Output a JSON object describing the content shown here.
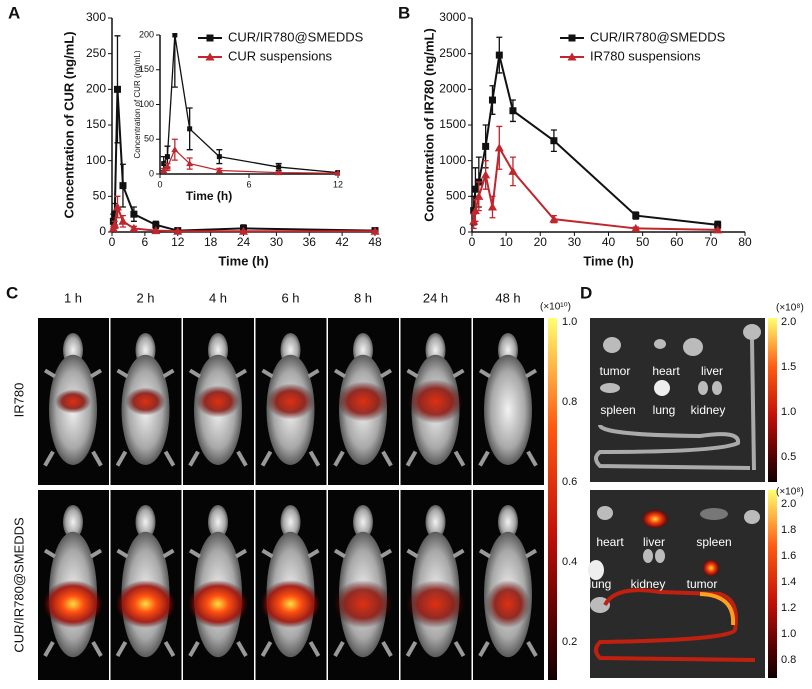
{
  "chart_data": [
    {
      "type": "line",
      "panel": "A",
      "xlabel": "Time (h)",
      "ylabel": "Concentration of CUR (ng/mL)",
      "x": [
        0.25,
        0.5,
        1,
        2,
        4,
        8,
        12,
        24,
        48
      ],
      "xlim": [
        0,
        48
      ],
      "xticks": [
        0,
        6,
        12,
        18,
        24,
        30,
        36,
        42,
        48
      ],
      "ylim": [
        0,
        300
      ],
      "yticks": [
        0,
        50,
        100,
        150,
        200,
        250,
        300
      ],
      "legend": "upper right",
      "series": [
        {
          "name": "CUR/IR780@SMEDDS",
          "color": "#111111",
          "marker": "square",
          "values": [
            15,
            25,
            200,
            65,
            25,
            10,
            2,
            5,
            2
          ],
          "errors": [
            10,
            15,
            75,
            30,
            10,
            5,
            2,
            5,
            2
          ]
        },
        {
          "name": "CUR suspensions",
          "color": "#c0262d",
          "marker": "triangle",
          "values": [
            5,
            10,
            35,
            15,
            5,
            2,
            1,
            1,
            1
          ],
          "errors": [
            3,
            5,
            15,
            8,
            3,
            1,
            1,
            1,
            1
          ]
        }
      ],
      "inset": {
        "xlabel": "Time (h)",
        "ylabel": "Concentration of CUR (ng/mL)",
        "xlim": [
          0,
          12
        ],
        "xticks": [
          0,
          6,
          12
        ],
        "ylim": [
          0,
          200
        ],
        "yticks": [
          0,
          50,
          100,
          150,
          200
        ]
      }
    },
    {
      "type": "line",
      "panel": "B",
      "xlabel": "Time (h)",
      "ylabel": "Concentration of IR780 (ng/mL)",
      "x": [
        0.5,
        1,
        2,
        4,
        6,
        8,
        12,
        24,
        48,
        72
      ],
      "xlim": [
        0,
        80
      ],
      "xticks": [
        0,
        10,
        20,
        30,
        40,
        50,
        60,
        70,
        80
      ],
      "ylim": [
        0,
        3000
      ],
      "yticks": [
        0,
        500,
        1000,
        1500,
        2000,
        2500,
        3000
      ],
      "legend": "upper right",
      "series": [
        {
          "name": "CUR/IR780@SMEDDS",
          "color": "#111111",
          "marker": "square",
          "values": [
            300,
            600,
            700,
            1200,
            1850,
            2480,
            1700,
            1280,
            230,
            100
          ],
          "errors": [
            200,
            300,
            350,
            300,
            200,
            250,
            150,
            150,
            50,
            50
          ]
        },
        {
          "name": "IR780 suspensions",
          "color": "#c0262d",
          "marker": "triangle",
          "values": [
            150,
            300,
            500,
            800,
            350,
            1180,
            850,
            180,
            50,
            30
          ],
          "errors": [
            100,
            150,
            200,
            200,
            150,
            300,
            200,
            50,
            20,
            10
          ]
        }
      ]
    }
  ],
  "panel_c": {
    "label": "C",
    "times": [
      "1 h",
      "2 h",
      "4 h",
      "6 h",
      "8 h",
      "24 h",
      "48 h"
    ],
    "rows": [
      "IR780",
      "CUR/IR780@SMEDDS"
    ],
    "colorbar_unit": "(×10¹⁰)",
    "colorbar_ticks": [
      "1.0",
      "0.8",
      "0.6",
      "0.4",
      "0.2"
    ]
  },
  "panel_d": {
    "label": "D",
    "top": {
      "organs": [
        "tumor",
        "heart",
        "liver",
        "spleen",
        "lung",
        "kidney"
      ],
      "colorbar_unit": "(×10⁸)",
      "colorbar_ticks": [
        "2.0",
        "1.5",
        "1.0",
        "0.5"
      ]
    },
    "bottom": {
      "organs": [
        "heart",
        "liver",
        "spleen",
        "lung",
        "kidney",
        "tumor"
      ],
      "colorbar_unit": "(×10⁸)",
      "colorbar_ticks": [
        "2.0",
        "1.8",
        "1.6",
        "1.4",
        "1.2",
        "1.0",
        "0.8"
      ]
    }
  }
}
